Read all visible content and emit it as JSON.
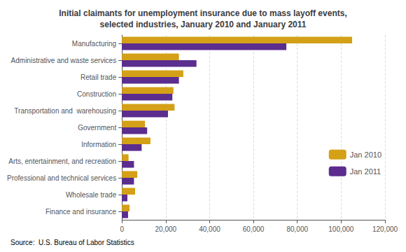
{
  "chart_data": {
    "type": "bar",
    "orientation": "horizontal",
    "title": "Initial claimants for unemployment insurance due to mass layoff events,\nselected industries, January 2010 and January 2011",
    "source": "Source:  U.S. Bureau of Labor Statistics",
    "categories": [
      "Manufacturing",
      "Administrative and waste services",
      "Retail trade",
      "Construction",
      "Transportation and  warehousing",
      "Government",
      "Information",
      "Arts, entertainment, and recreation",
      "Professional and technical services",
      "Wholesale trade",
      "Finance and insurance"
    ],
    "series": [
      {
        "name": "Jan 2010",
        "color": "#D4A017",
        "values": [
          105000,
          26000,
          28000,
          23500,
          24000,
          10500,
          13000,
          3000,
          7000,
          6000,
          3500
        ]
      },
      {
        "name": "Jan 2011",
        "color": "#5B2D8E",
        "values": [
          75000,
          34000,
          26000,
          23000,
          21000,
          11500,
          9000,
          5500,
          5500,
          2500,
          2800
        ]
      }
    ],
    "xlim": [
      0,
      120000
    ],
    "xticks": [
      0,
      {
        "value": 20000,
        "label": "20,000"
      },
      {
        "value": 40000,
        "label": "40,000"
      },
      {
        "value": 60000,
        "label": "60,000"
      },
      {
        "value": 80000,
        "label": "80,000"
      },
      {
        "value": 100000,
        "label": "100,000"
      },
      {
        "value": 120000,
        "label": "120,000"
      }
    ],
    "grid": true,
    "legend": "right"
  }
}
